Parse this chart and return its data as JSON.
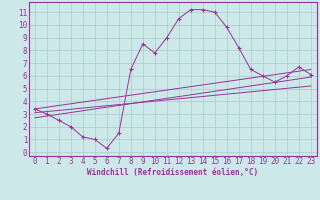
{
  "xlabel": "Windchill (Refroidissement éolien,°C)",
  "background_color": "#cce8e8",
  "line_color": "#993399",
  "grid_color": "#aacccc",
  "xlim": [
    -0.5,
    23.5
  ],
  "ylim": [
    -0.3,
    11.8
  ],
  "xticks": [
    0,
    1,
    2,
    3,
    4,
    5,
    6,
    7,
    8,
    9,
    10,
    11,
    12,
    13,
    14,
    15,
    16,
    17,
    18,
    19,
    20,
    21,
    22,
    23
  ],
  "yticks": [
    0,
    1,
    2,
    3,
    4,
    5,
    6,
    7,
    8,
    9,
    10,
    11
  ],
  "curve_x": [
    0,
    1,
    2,
    3,
    4,
    5,
    6,
    7,
    8,
    9,
    10,
    11,
    12,
    13,
    14,
    15,
    16,
    17,
    18,
    19,
    20,
    21,
    22,
    23
  ],
  "curve_y": [
    3.4,
    3.0,
    2.5,
    2.0,
    1.2,
    1.0,
    0.3,
    1.5,
    6.5,
    8.5,
    7.8,
    9.0,
    10.5,
    11.2,
    11.2,
    11.0,
    9.8,
    8.2,
    6.5,
    6.0,
    5.5,
    6.0,
    6.7,
    6.1
  ],
  "line1_x": [
    0,
    23
  ],
  "line1_y": [
    3.4,
    6.5
  ],
  "line2_x": [
    0,
    23
  ],
  "line2_y": [
    2.7,
    5.9
  ],
  "line3_x": [
    0,
    23
  ],
  "line3_y": [
    3.1,
    5.2
  ],
  "tick_fontsize": 5.5,
  "xlabel_fontsize": 5.5
}
